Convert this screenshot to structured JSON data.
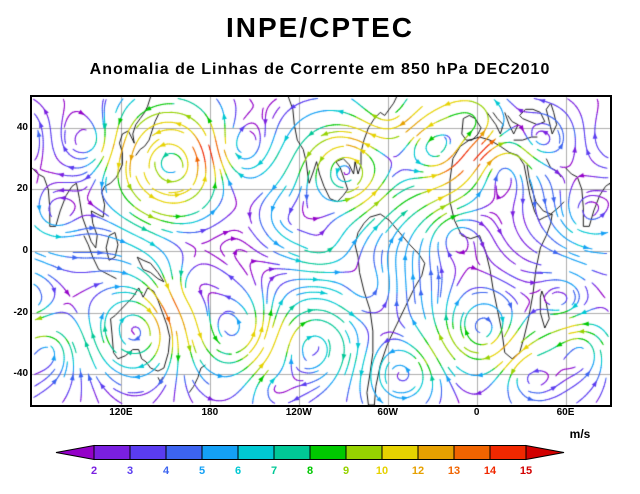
{
  "header": {
    "title": "INPE/CPTEC",
    "subtitle": "Anomalia de Linhas de Corrente em 850 hPa DEC2010"
  },
  "chart_data": {
    "type": "streamline-map",
    "title": "Anomalia de Linhas de Corrente em 850 hPa DEC2010",
    "institution": "INPE/CPTEC",
    "variable": "Anomalia de Linhas de Corrente",
    "level": "850 hPa",
    "period": "DEC2010",
    "units": "m/s",
    "lon_range": [
      60,
      450
    ],
    "lat_range": [
      -50,
      50
    ],
    "grid": true,
    "x_ticks": [
      {
        "lon": 120,
        "label": "120E"
      },
      {
        "lon": 180,
        "label": "180"
      },
      {
        "lon": 240,
        "label": "120W"
      },
      {
        "lon": 300,
        "label": "60W"
      },
      {
        "lon": 360,
        "label": "0"
      },
      {
        "lon": 420,
        "label": "60E"
      }
    ],
    "y_ticks": [
      {
        "lat": 40,
        "label": "40"
      },
      {
        "lat": 20,
        "label": "20"
      },
      {
        "lat": 0,
        "label": "0"
      },
      {
        "lat": -20,
        "label": "-20"
      },
      {
        "lat": -40,
        "label": "-40"
      }
    ],
    "colorbar": {
      "units_label": "m/s",
      "tick_labels": [
        "2",
        "3",
        "4",
        "5",
        "6",
        "7",
        "8",
        "9",
        "10",
        "12",
        "13",
        "14",
        "15"
      ],
      "colors": [
        "#9400c8",
        "#7a1fe0",
        "#5a3cf0",
        "#3c64f0",
        "#14a0f5",
        "#00c8d2",
        "#00c896",
        "#00c800",
        "#96d200",
        "#e6d200",
        "#e6a000",
        "#f06400",
        "#f02800",
        "#d20000"
      ]
    },
    "background_flow": {
      "u_amp": 1.2,
      "v_amp": 0.35
    },
    "vortices": [
      [
        154,
        28,
        11,
        20
      ],
      [
        200,
        33,
        -6,
        14
      ],
      [
        232,
        10,
        4,
        15
      ],
      [
        272,
        26,
        10,
        16
      ],
      [
        300,
        45,
        -5,
        12
      ],
      [
        332,
        33,
        9,
        14
      ],
      [
        357,
        42,
        7,
        12
      ],
      [
        377,
        27,
        -6,
        14
      ],
      [
        404,
        36,
        5,
        11
      ],
      [
        100,
        35,
        -5,
        13
      ],
      [
        75,
        12,
        4,
        12
      ],
      [
        131,
        -26,
        -8,
        17
      ],
      [
        168,
        -12,
        5,
        13
      ],
      [
        195,
        -26,
        7,
        16
      ],
      [
        249,
        -31,
        -7,
        15
      ],
      [
        285,
        -12,
        4,
        12
      ],
      [
        310,
        -40,
        6,
        13
      ],
      [
        364,
        -26,
        -8,
        16
      ],
      [
        395,
        -40,
        5,
        12
      ],
      [
        418,
        -16,
        -5,
        12
      ],
      [
        70,
        -32,
        5,
        11
      ],
      [
        222,
        -45,
        -4,
        11
      ],
      [
        345,
        5,
        -4,
        12
      ],
      [
        255,
        2,
        4,
        12
      ]
    ]
  }
}
